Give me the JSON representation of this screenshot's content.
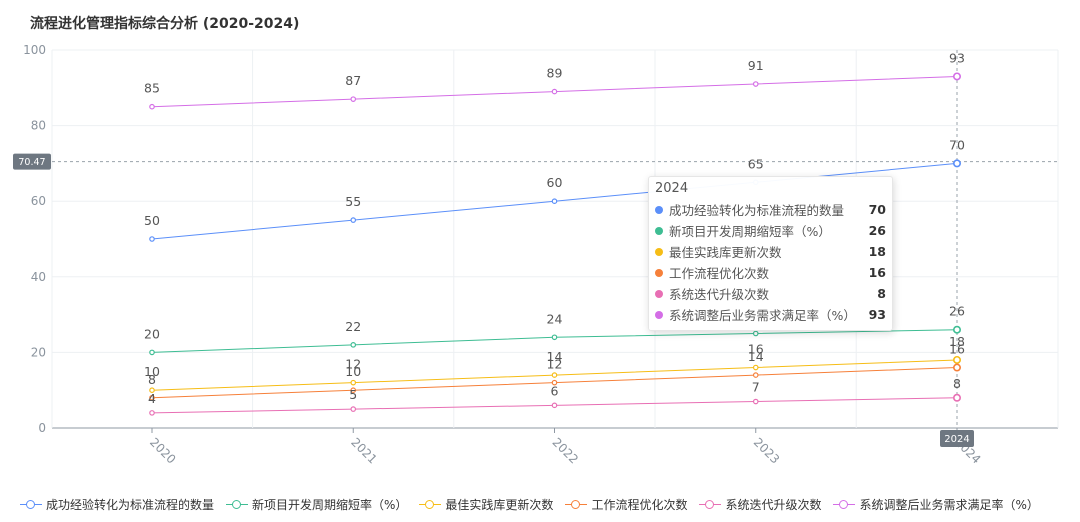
{
  "title": "流程进化管理指标综合分析 (2020-2024)",
  "chart_data": {
    "type": "line",
    "categories": [
      "2020",
      "2021",
      "2022",
      "2023",
      "2024"
    ],
    "ylim": [
      0,
      100
    ],
    "yticks": [
      "0",
      "20",
      "40",
      "60",
      "80",
      "100"
    ],
    "grid": true,
    "legend_position": "bottom",
    "series": [
      {
        "name": "成功经验转化为标准流程的数量",
        "color": "#5b8ff9",
        "values": [
          50,
          55,
          60,
          65,
          70
        ]
      },
      {
        "name": "新项目开发周期缩短率（%）",
        "color": "#3ebd93",
        "values": [
          20,
          22,
          24,
          25,
          26
        ]
      },
      {
        "name": "最佳实践库更新次数",
        "color": "#f6bd16",
        "values": [
          10,
          12,
          14,
          16,
          18
        ]
      },
      {
        "name": "工作流程优化次数",
        "color": "#f6803a",
        "values": [
          8,
          10,
          12,
          14,
          16
        ]
      },
      {
        "name": "系统迭代升级次数",
        "color": "#e86fb4",
        "values": [
          4,
          5,
          6,
          7,
          8
        ]
      },
      {
        "name": "系统调整后业务需求满足率（%）",
        "color": "#d46ee6",
        "values": [
          85,
          87,
          89,
          91,
          93
        ]
      }
    ],
    "crosshair": {
      "y_value": "70.47",
      "x_label": "2024"
    },
    "tooltip": {
      "header": "2024",
      "rows": [
        {
          "name": "成功经验转化为标准流程的数量",
          "value": "70",
          "color": "#5b8ff9"
        },
        {
          "name": "新项目开发周期缩短率（%）",
          "value": "26",
          "color": "#3ebd93"
        },
        {
          "name": "最佳实践库更新次数",
          "value": "18",
          "color": "#f6bd16"
        },
        {
          "name": "工作流程优化次数",
          "value": "16",
          "color": "#f6803a"
        },
        {
          "name": "系统迭代升级次数",
          "value": "8",
          "color": "#e86fb4"
        },
        {
          "name": "系统调整后业务需求满足率（%）",
          "value": "93",
          "color": "#d46ee6"
        }
      ]
    }
  }
}
